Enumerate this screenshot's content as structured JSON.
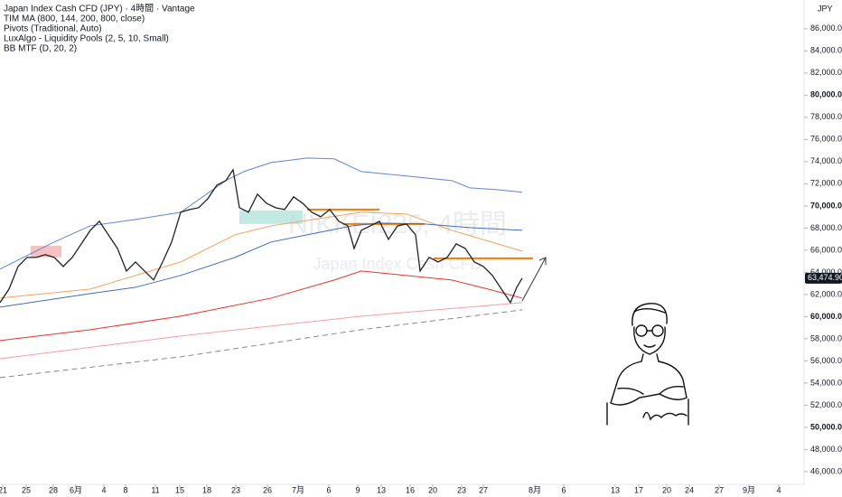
{
  "chart_data": {
    "type": "line",
    "legend_lines": [
      "Japan Index Cash CFD (JPY) · 4時間 · Vantage",
      "TIM MA (800, 144, 200, 800, close)",
      "Pivots (Traditional, Auto)",
      "LuxAlgo - Liquidity Pools (2, 5, 10, Small)",
      "BB MTF (D, 20, 2)"
    ],
    "currency": "JPY",
    "watermark": [
      "NIKKEI225, 4時間",
      "Japan Index Cash CFD"
    ],
    "xlim": [
      0,
      89
    ],
    "ylim": [
      44850,
      88600
    ],
    "xticks": [
      {
        "value": 0.3,
        "label": "21"
      },
      {
        "value": 2.9,
        "label": "25"
      },
      {
        "value": 5.9,
        "label": "28"
      },
      {
        "value": 8.4,
        "label": "6月"
      },
      {
        "value": 11.5,
        "label": "4"
      },
      {
        "value": 13.9,
        "label": "8"
      },
      {
        "value": 17.2,
        "label": "11"
      },
      {
        "value": 19.9,
        "label": "15"
      },
      {
        "value": 22.9,
        "label": "18"
      },
      {
        "value": 26.1,
        "label": "23"
      },
      {
        "value": 29.6,
        "label": "26"
      },
      {
        "value": 33,
        "label": "7月"
      },
      {
        "value": 36.4,
        "label": "6"
      },
      {
        "value": 39.6,
        "label": "9"
      },
      {
        "value": 42.2,
        "label": "13"
      },
      {
        "value": 45.4,
        "label": "16"
      },
      {
        "value": 47.9,
        "label": "20"
      },
      {
        "value": 51.1,
        "label": "23"
      },
      {
        "value": 53.5,
        "label": "27"
      },
      {
        "value": 59.2,
        "label": "8月"
      },
      {
        "value": 62.4,
        "label": "6"
      },
      {
        "value": 68.1,
        "label": "13"
      },
      {
        "value": 70.7,
        "label": "17"
      },
      {
        "value": 73.8,
        "label": "20"
      },
      {
        "value": 76.3,
        "label": "24"
      },
      {
        "value": 79.6,
        "label": "27"
      },
      {
        "value": 82.9,
        "label": "9月"
      },
      {
        "value": 86.2,
        "label": "4"
      }
    ],
    "yticks": [
      {
        "value": 46000,
        "label": "46,000.00"
      },
      {
        "value": 48000,
        "label": "48,000.00"
      },
      {
        "value": 50000,
        "label": "50,000.00"
      },
      {
        "value": 52000,
        "label": "52,000.00"
      },
      {
        "value": 54000,
        "label": "54,000.00"
      },
      {
        "value": 56000,
        "label": "56,000.00"
      },
      {
        "value": 58000,
        "label": "58,000.00"
      },
      {
        "value": 60000,
        "label": "60,000.00"
      },
      {
        "value": 62000,
        "label": "62,000.00"
      },
      {
        "value": 64000,
        "label": "64,000.00"
      },
      {
        "value": 66000,
        "label": "66,000.00"
      },
      {
        "value": 68000,
        "label": "68,000.00"
      },
      {
        "value": 70000,
        "label": "70,000.00"
      },
      {
        "value": 72000,
        "label": "72,000.00"
      },
      {
        "value": 74000,
        "label": "74,000.00"
      },
      {
        "value": 76000,
        "label": "76,000.00"
      },
      {
        "value": 78000,
        "label": "78,000.00"
      },
      {
        "value": 80000,
        "label": "80,000.00"
      },
      {
        "value": 82000,
        "label": "82,000.00"
      },
      {
        "value": 84000,
        "label": "84,000.00"
      },
      {
        "value": 86000,
        "label": "86,000.00"
      }
    ],
    "last_price": {
      "value": 63474.9,
      "label": "63,474.90"
    },
    "series": [
      {
        "color": "#222222",
        "x": [
          0,
          1,
          2,
          3,
          4,
          5,
          6,
          7,
          8,
          9,
          10,
          11,
          12,
          13,
          14,
          15,
          16,
          17,
          18,
          19,
          20,
          21,
          22,
          23,
          24,
          25,
          25.8,
          26.5,
          27.5,
          28.5,
          29.5,
          30.5,
          31.5,
          32.5,
          33.5,
          34.5,
          35.5,
          36.5,
          37.5,
          38.5,
          39.2,
          40,
          41,
          42,
          43,
          44,
          45,
          46,
          46.5,
          47.5,
          48.5,
          49.5,
          50.5,
          51.5,
          52.5,
          53.5,
          54.5,
          55.5,
          56.5,
          57.2,
          57.8
        ],
        "values": [
          61270,
          62490,
          64530,
          65350,
          65350,
          65600,
          65350,
          64530,
          65350,
          66570,
          67800,
          68610,
          67390,
          66160,
          64120,
          64940,
          64120,
          63310,
          64940,
          66730,
          69430,
          69670,
          69840,
          70650,
          71880,
          72290,
          73270,
          69840,
          69430,
          71060,
          70240,
          69840,
          69670,
          70820,
          70240,
          69430,
          69020,
          69670,
          68610,
          68200,
          66160,
          67800,
          68200,
          68610,
          66980,
          68200,
          68370,
          67390,
          64120,
          65350,
          64940,
          65350,
          66570,
          66160,
          64940,
          64530,
          63720,
          62490,
          61270,
          62650,
          63474.9
        ]
      },
      {
        "color": "#5b87d6",
        "x": [
          0,
          6,
          10,
          15,
          20,
          25,
          27,
          30,
          34,
          37,
          40,
          45,
          50,
          52,
          55,
          57.8
        ],
        "values": [
          64290,
          66740,
          68200,
          68780,
          69430,
          72290,
          73100,
          73920,
          74330,
          74250,
          73100,
          72700,
          72290,
          71630,
          71470,
          71230
        ]
      },
      {
        "color": "#3d6bc4",
        "x": [
          0,
          10,
          15,
          20,
          26,
          30,
          35,
          39,
          42,
          47,
          52,
          57.8
        ],
        "values": [
          60860,
          62080,
          62650,
          63720,
          65350,
          66740,
          67550,
          68200,
          68450,
          68370,
          68040,
          67800
        ]
      },
      {
        "color": "#f5a25d",
        "x": [
          0,
          10,
          20,
          26,
          30,
          40,
          45,
          50,
          57.8
        ],
        "values": [
          61670,
          62490,
          64940,
          67390,
          68200,
          69430,
          69270,
          67800,
          65920
        ]
      },
      {
        "color": "#e8342c",
        "x": [
          0,
          10,
          20,
          30,
          37,
          40,
          45,
          50,
          54,
          57.8
        ],
        "values": [
          57840,
          58820,
          60040,
          61670,
          63310,
          64120,
          63720,
          63310,
          62490,
          61670
        ]
      },
      {
        "color": "#f4a0a0",
        "x": [
          0,
          20,
          40,
          57.8
        ],
        "values": [
          56200,
          58250,
          60040,
          61270
        ]
      },
      {
        "color": "#888888",
        "dash": true,
        "x": [
          0,
          20,
          40,
          57.8
        ],
        "values": [
          54490,
          56370,
          58820,
          60610
        ]
      }
    ],
    "levels": [
      {
        "value": 69670,
        "x": [
          34,
          42
        ],
        "color": "#f57c00"
      },
      {
        "value": 68370,
        "x": [
          38,
          47
        ],
        "color": "#f57c00"
      },
      {
        "value": 65270,
        "x": [
          48,
          59
        ],
        "color": "#f57c00"
      }
    ],
    "zones": [
      {
        "x": [
          3.4,
          6.8
        ],
        "ylim": [
          65350,
          66400
        ],
        "color": "#f4a6a6"
      },
      {
        "x": [
          26.5,
          33.5
        ],
        "ylim": [
          68370,
          69600
        ],
        "color": "#a8dfd8"
      }
    ]
  }
}
